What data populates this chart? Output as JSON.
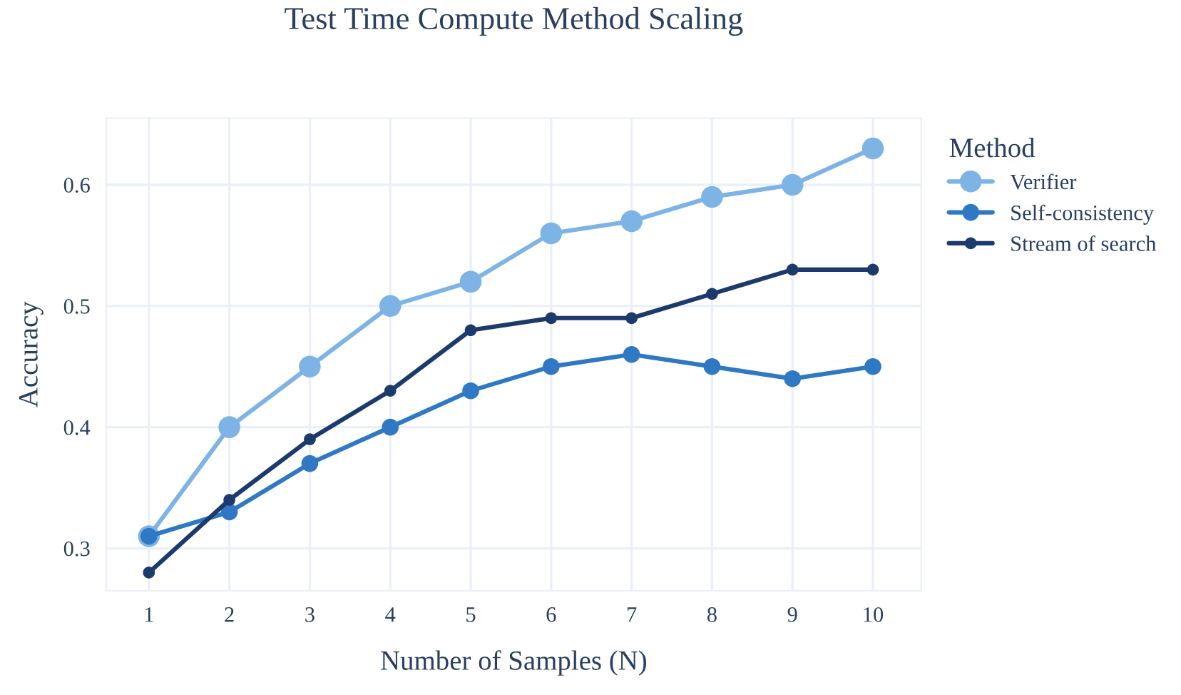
{
  "chart_data": {
    "type": "line",
    "title": "Test Time Compute Method Scaling",
    "xlabel": "Number of Samples (N)",
    "ylabel": "Accuracy",
    "legend_title": "Method",
    "x": [
      1,
      2,
      3,
      4,
      5,
      6,
      7,
      8,
      9,
      10
    ],
    "series": [
      {
        "name": "Verifier",
        "color": "#7eb3e6",
        "values": [
          0.31,
          0.4,
          0.45,
          0.5,
          0.52,
          0.56,
          0.57,
          0.59,
          0.6,
          0.63
        ]
      },
      {
        "name": "Self-consistency",
        "color": "#2f78c4",
        "values": [
          0.31,
          0.33,
          0.37,
          0.4,
          0.43,
          0.45,
          0.46,
          0.45,
          0.44,
          0.45
        ]
      },
      {
        "name": "Stream of search",
        "color": "#1c3a6b",
        "values": [
          0.28,
          0.34,
          0.39,
          0.43,
          0.48,
          0.49,
          0.49,
          0.51,
          0.53,
          0.53
        ]
      }
    ],
    "xlim": [
      0.47,
      10.6
    ],
    "ylim": [
      0.265,
      0.655
    ],
    "xticks": [
      1,
      2,
      3,
      4,
      5,
      6,
      7,
      8,
      9,
      10
    ],
    "yticks": [
      0.3,
      0.4,
      0.5,
      0.6
    ],
    "grid": true,
    "legend": "top right",
    "marker": "circle",
    "line_style": "solid"
  }
}
